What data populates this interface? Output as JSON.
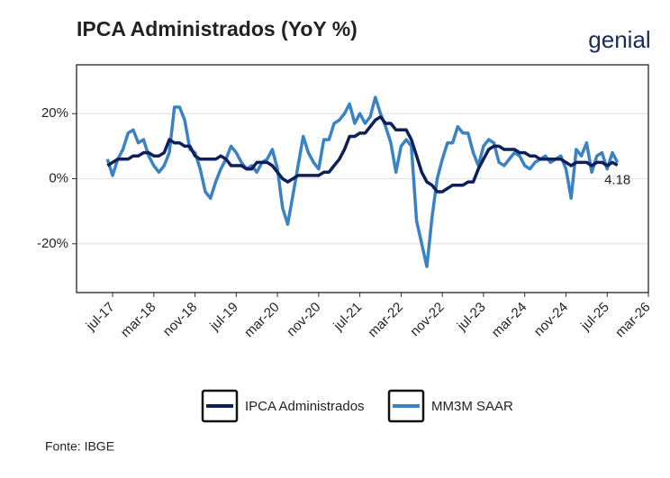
{
  "chart_data": {
    "type": "line",
    "title": "IPCA Administrados (YoY %)",
    "brand": "genial",
    "source": "Fonte: IBGE",
    "annotation": "4.18",
    "x": [
      "2017-06",
      "2017-07",
      "2017-08",
      "2017-09",
      "2017-10",
      "2017-11",
      "2017-12",
      "2018-01",
      "2018-02",
      "2018-03",
      "2018-04",
      "2018-05",
      "2018-06",
      "2018-07",
      "2018-08",
      "2018-09",
      "2018-10",
      "2018-11",
      "2018-12",
      "2019-01",
      "2019-02",
      "2019-03",
      "2019-04",
      "2019-05",
      "2019-06",
      "2019-07",
      "2019-08",
      "2019-09",
      "2019-10",
      "2019-11",
      "2019-12",
      "2020-01",
      "2020-02",
      "2020-03",
      "2020-04",
      "2020-05",
      "2020-06",
      "2020-07",
      "2020-08",
      "2020-09",
      "2020-10",
      "2020-11",
      "2020-12",
      "2021-01",
      "2021-02",
      "2021-03",
      "2021-04",
      "2021-05",
      "2021-06",
      "2021-07",
      "2021-08",
      "2021-09",
      "2021-10",
      "2021-11",
      "2021-12",
      "2022-01",
      "2022-02",
      "2022-03",
      "2022-04",
      "2022-05",
      "2022-06",
      "2022-07",
      "2022-08",
      "2022-09",
      "2022-10",
      "2022-11",
      "2022-12",
      "2023-01",
      "2023-02",
      "2023-03",
      "2023-04",
      "2023-05",
      "2023-06",
      "2023-07",
      "2023-08",
      "2023-09",
      "2023-10",
      "2023-11",
      "2023-12",
      "2024-01",
      "2024-02",
      "2024-03",
      "2024-04",
      "2024-05",
      "2024-06",
      "2024-07",
      "2024-08",
      "2024-09",
      "2024-10",
      "2024-11",
      "2024-12",
      "2025-01",
      "2025-02",
      "2025-03",
      "2025-04",
      "2025-05",
      "2025-06",
      "2025-07",
      "2025-08",
      "2025-09"
    ],
    "series": [
      {
        "name": "IPCA Administrados",
        "color": "#0d1f5c",
        "values": [
          4,
          5,
          6,
          6,
          6,
          7,
          7,
          8,
          8,
          7,
          7,
          8,
          12,
          11,
          11,
          10,
          10,
          7,
          6,
          6,
          6,
          6,
          7,
          6,
          4,
          4,
          4,
          3,
          3,
          5,
          5,
          5,
          4,
          2,
          0,
          -1,
          0,
          1,
          1,
          1,
          1,
          1,
          2,
          2,
          4,
          6,
          9,
          13,
          13,
          14,
          14,
          16,
          18,
          19,
          17,
          17,
          15,
          15,
          15,
          12,
          7,
          2,
          -1,
          -2,
          -4,
          -4,
          -3,
          -2,
          -2,
          -2,
          -1,
          -1,
          3,
          6,
          9,
          10,
          10,
          9,
          9,
          9,
          8,
          8,
          7,
          7,
          6,
          6,
          6,
          6,
          6,
          5,
          4,
          5,
          5,
          5,
          4,
          5,
          5,
          4,
          5,
          4.18
        ]
      },
      {
        "name": "MM3M SAAR",
        "color": "#3a82c4",
        "values": [
          6,
          1,
          6,
          9,
          14,
          15,
          11,
          12,
          7,
          4,
          2,
          4,
          8,
          22,
          22,
          18,
          9,
          8,
          3,
          -4,
          -6,
          -1,
          3,
          6,
          10,
          8,
          5,
          3,
          4,
          2,
          5,
          6,
          9,
          3,
          -9,
          -14,
          -5,
          4,
          13,
          8,
          5,
          3,
          12,
          12,
          17,
          18,
          20,
          23,
          17,
          20,
          17,
          19,
          25,
          20,
          16,
          11,
          2,
          10,
          12,
          10,
          -13,
          -20,
          -27,
          -12,
          0,
          6,
          11,
          11,
          16,
          14,
          14,
          8,
          4,
          10,
          12,
          11,
          5,
          4,
          6,
          8,
          7,
          4,
          3,
          5,
          6,
          7,
          5,
          6,
          7,
          3,
          -6,
          9,
          7,
          11,
          2,
          7,
          8,
          3,
          8,
          5
        ]
      }
    ],
    "xlim": [
      "2016-12",
      "2026-03"
    ],
    "xticks": [
      {
        "value": "2017-07",
        "label": "jul-17"
      },
      {
        "value": "2018-03",
        "label": "mar-18"
      },
      {
        "value": "2018-11",
        "label": "nov-18"
      },
      {
        "value": "2019-07",
        "label": "jul-19"
      },
      {
        "value": "2020-03",
        "label": "mar-20"
      },
      {
        "value": "2020-11",
        "label": "nov-20"
      },
      {
        "value": "2021-07",
        "label": "jul-21"
      },
      {
        "value": "2022-03",
        "label": "mar-22"
      },
      {
        "value": "2022-11",
        "label": "nov-22"
      },
      {
        "value": "2023-07",
        "label": "jul-23"
      },
      {
        "value": "2024-03",
        "label": "mar-24"
      },
      {
        "value": "2024-11",
        "label": "nov-24"
      },
      {
        "value": "2025-07",
        "label": "jul-25"
      },
      {
        "value": "2026-03",
        "label": "mar-26"
      }
    ],
    "ylim": [
      -35,
      35
    ],
    "yticks": [
      {
        "value": -20,
        "label": "-20%"
      },
      {
        "value": 0,
        "label": "0%"
      },
      {
        "value": 20,
        "label": "20%"
      }
    ],
    "grid": true
  }
}
